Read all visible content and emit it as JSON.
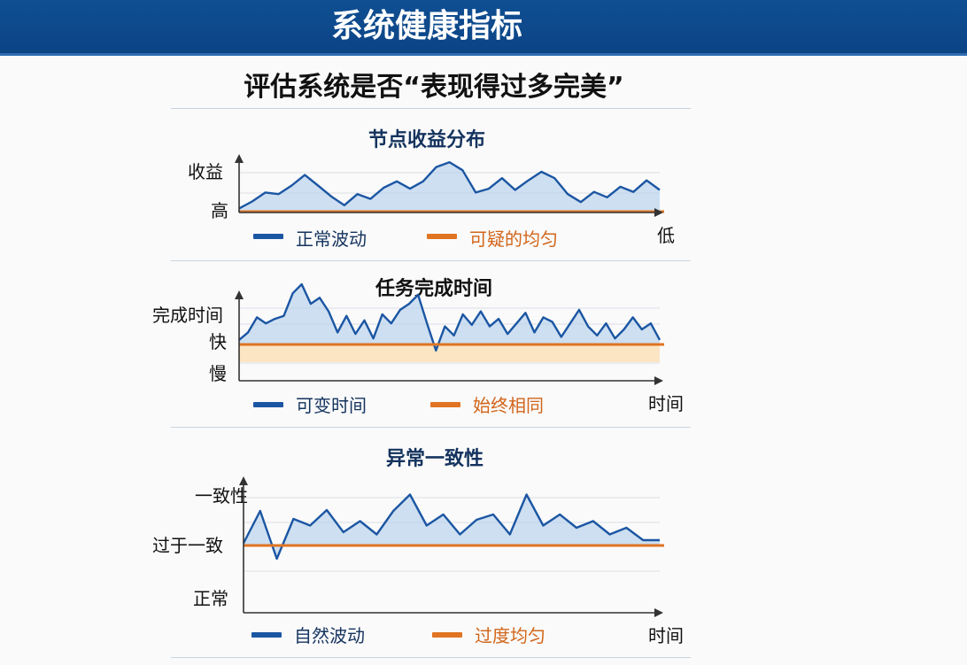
{
  "header": {
    "title": "系统健康指标"
  },
  "subtitle": "评估系统是否“表现得过多完美”",
  "colors": {
    "normal": "#1b56a3",
    "suspicious": "#e07422",
    "fill": "#b9d3ec",
    "band": "#fbe5c2"
  },
  "chart_data": [
    {
      "type": "area",
      "title": "节点收益分布",
      "y_top_label": "收益",
      "y_bottom_label": "高",
      "x_end_label": "低",
      "series": [
        {
          "name": "正常波动",
          "values": [
            0.1,
            0.32,
            0.6,
            0.55,
            0.82,
            1.15,
            0.82,
            0.48,
            0.2,
            0.55,
            0.4,
            0.75,
            0.95,
            0.72,
            0.95,
            1.4,
            1.55,
            1.3,
            0.6,
            0.72,
            1.05,
            0.68,
            0.98,
            1.25,
            1.05,
            0.55,
            0.3,
            0.62,
            0.45,
            0.78,
            0.62,
            0.98,
            0.68
          ]
        },
        {
          "name": "可疑的均匀",
          "values": [
            0,
            0,
            0,
            0,
            0,
            0,
            0,
            0,
            0,
            0,
            0,
            0,
            0,
            0,
            0,
            0,
            0,
            0,
            0,
            0,
            0,
            0,
            0,
            0,
            0,
            0,
            0,
            0,
            0,
            0,
            0,
            0,
            0
          ]
        }
      ]
    },
    {
      "type": "area",
      "title": "任务完成时间",
      "y_top_label": "完成时间",
      "y_mid_label": "快",
      "y_bottom_label": "慢",
      "x_end_label": "时间",
      "series": [
        {
          "name": "可变时间",
          "values": [
            0.15,
            0.4,
            0.9,
            0.7,
            0.85,
            0.95,
            1.7,
            2.0,
            1.35,
            1.55,
            1.1,
            0.4,
            0.95,
            0.35,
            0.8,
            0.2,
            1.0,
            0.7,
            1.15,
            1.35,
            1.65,
            0.7,
            -0.2,
            0.6,
            0.3,
            1.0,
            0.65,
            1.1,
            0.6,
            0.85,
            0.35,
            0.7,
            1.05,
            0.4,
            0.9,
            0.75,
            0.25,
            0.7,
            1.15,
            0.6,
            0.3,
            0.7,
            0.2,
            0.5,
            0.9,
            0.5,
            0.7,
            0.15
          ]
        },
        {
          "name": "始终相同",
          "values": [
            0,
            0,
            0,
            0,
            0,
            0,
            0,
            0,
            0,
            0,
            0,
            0,
            0,
            0,
            0,
            0,
            0,
            0,
            0,
            0,
            0,
            0,
            0,
            0,
            0,
            0,
            0,
            0,
            0,
            0,
            0,
            0,
            0,
            0,
            0,
            0,
            0,
            0,
            0,
            0,
            0,
            0,
            0,
            0,
            0,
            0,
            0,
            0
          ]
        }
      ]
    },
    {
      "type": "area",
      "title": "异常一致性",
      "y_top_label": "一致性",
      "y_mid_label": "过于一致",
      "y_bottom_label": "正常",
      "x_end_label": "时间",
      "series": [
        {
          "name": "自然波动",
          "values": [
            0.05,
            0.78,
            -0.3,
            0.6,
            0.45,
            0.8,
            0.3,
            0.55,
            0.25,
            0.78,
            1.15,
            0.45,
            0.7,
            0.25,
            0.58,
            0.7,
            0.25,
            1.15,
            0.45,
            0.7,
            0.4,
            0.55,
            0.25,
            0.4,
            0.12,
            0.12
          ]
        },
        {
          "name": "过度均匀",
          "values": [
            0,
            0,
            0,
            0,
            0,
            0,
            0,
            0,
            0,
            0,
            0,
            0,
            0,
            0,
            0,
            0,
            0,
            0,
            0,
            0,
            0,
            0,
            0,
            0,
            0,
            0
          ]
        }
      ]
    }
  ]
}
